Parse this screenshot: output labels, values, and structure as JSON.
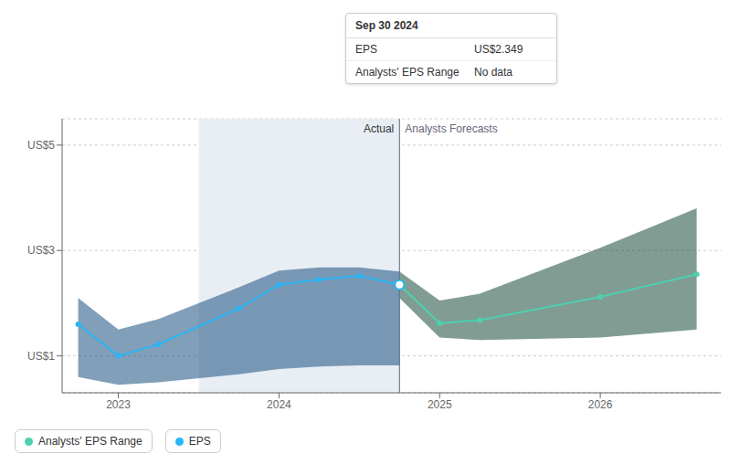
{
  "chart_data": {
    "type": "line",
    "xlim": [
      2022.65,
      2026.75
    ],
    "xticks": [
      2023,
      2024,
      2025,
      2026
    ],
    "ylim": [
      0.3,
      5.5
    ],
    "yticks": [
      {
        "value": 1,
        "label": "US$1"
      },
      {
        "value": 3,
        "label": "US$3"
      },
      {
        "value": 5,
        "label": "US$5"
      }
    ],
    "grid": true,
    "legend": "lower left",
    "series": [
      {
        "type": "band",
        "x": [
          2022.75,
          2023.0,
          2023.25,
          2023.75,
          2024.0,
          2024.25,
          2024.5,
          2024.75
        ],
        "upper": [
          2.1,
          1.5,
          1.7,
          2.3,
          2.62,
          2.68,
          2.68,
          2.6
        ],
        "lower": [
          0.6,
          0.45,
          0.5,
          0.65,
          0.75,
          0.8,
          0.82,
          0.82
        ],
        "color": "#1a5080"
      },
      {
        "type": "band",
        "x": [
          2024.75,
          2025.0,
          2025.25,
          2026.0,
          2026.6
        ],
        "upper": [
          2.6,
          2.05,
          2.18,
          3.05,
          3.8
        ],
        "lower": [
          2.1,
          1.35,
          1.3,
          1.35,
          1.5
        ],
        "color": "#1a4a3a"
      },
      {
        "name": "Analysts' EPS Range",
        "type": "line",
        "x": [
          2024.75,
          2025.0,
          2025.25,
          2026.0,
          2026.6
        ],
        "values": [
          2.349,
          1.62,
          1.68,
          2.12,
          2.55
        ],
        "color": "#4dd0b0",
        "marker": "o"
      },
      {
        "name": "EPS",
        "type": "line",
        "x": [
          2022.75,
          2023.0,
          2023.25,
          2023.75,
          2024.0,
          2024.25,
          2024.5,
          2024.75
        ],
        "values": [
          1.6,
          1.0,
          1.22,
          1.9,
          2.35,
          2.45,
          2.52,
          2.349
        ],
        "color": "#29b6f6",
        "marker": "o"
      }
    ],
    "highlight_x": [
      2023.5,
      2024.75
    ],
    "divider_x": 2024.75,
    "annotations": [
      "Actual",
      "Analysts Forecasts"
    ],
    "tooltip": {
      "title": "Sep 30 2024",
      "rows": [
        {
          "label": "EPS",
          "value": "US$2.349"
        },
        {
          "label": "Analysts' EPS Range",
          "value": "No data"
        }
      ]
    }
  }
}
